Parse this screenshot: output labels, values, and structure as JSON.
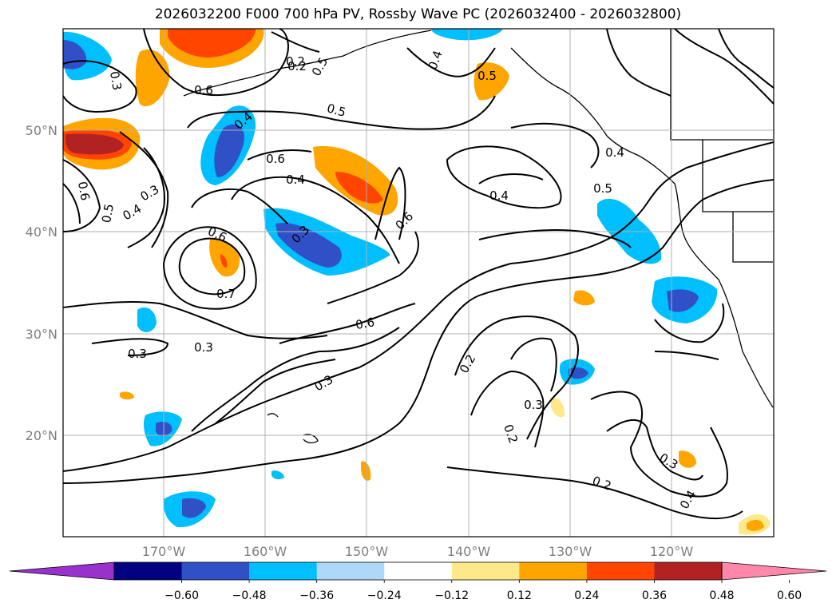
{
  "title": "2026032200 F000 700 hPa PV, Rossby Wave PC (2026032400 - 2026032800)",
  "lat_labels": [
    "50°N",
    "40°N",
    "30°N",
    "20°N"
  ],
  "lon_labels": [
    "170°W",
    "160°W",
    "150°W",
    "140°W",
    "130°W",
    "120°W"
  ],
  "contour_labels": [
    "0.3",
    "0.2",
    "0.5",
    "0.6",
    "0.4",
    "0.5",
    "0.3",
    "0.5",
    "0.2",
    "0.4",
    "0.6",
    "0.4",
    "0.6",
    "0.5",
    "0.4",
    "0.3",
    "0.6",
    "0.4",
    "0.5",
    "0.6",
    "0.7",
    "0.3",
    "0.4",
    "0.6",
    "0.2",
    "0.3",
    "0.3",
    "0.3",
    "0.2",
    "0.3",
    "0.4",
    "0.2"
  ],
  "colorbar": {
    "ticks": [
      "−0.60",
      "−0.48",
      "−0.36",
      "−0.24",
      "−0.12",
      "0.12",
      "0.24",
      "0.36",
      "0.48",
      "0.60"
    ],
    "colors": [
      "#9932cc",
      "#000080",
      "#3050c8",
      "#00bfff",
      "#add8f7",
      "#ffffff",
      "#fde98a",
      "#ffa500",
      "#ff4500",
      "#b22222",
      "#ff88aa"
    ]
  }
}
